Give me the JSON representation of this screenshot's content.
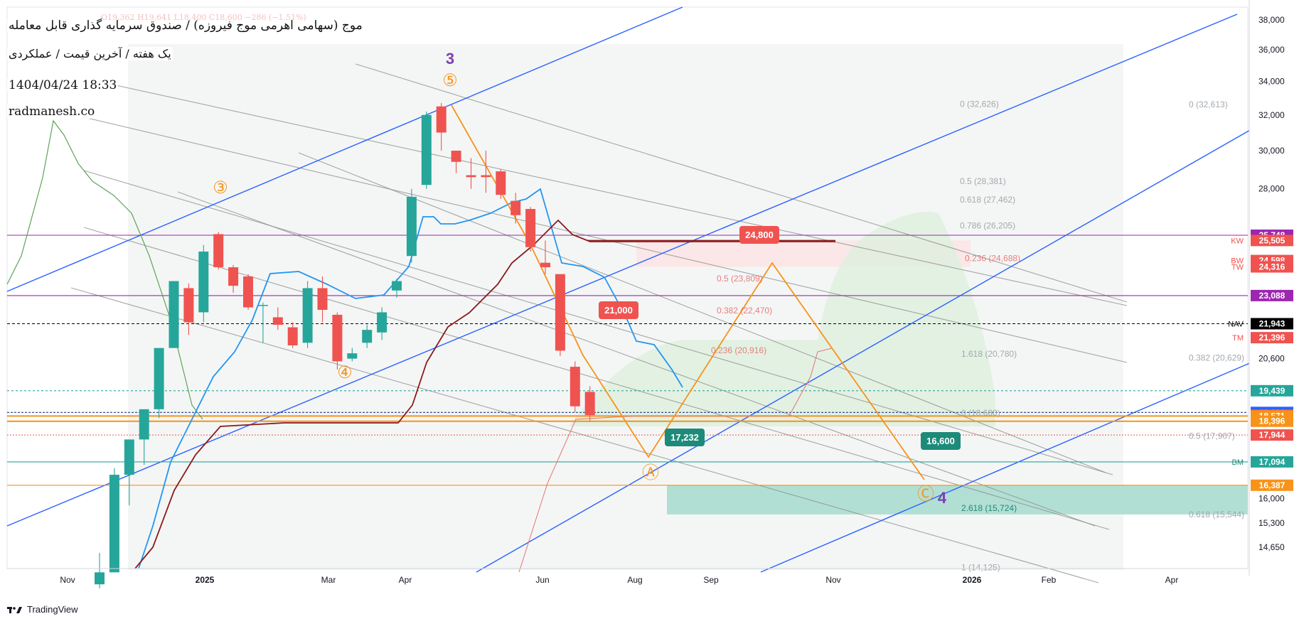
{
  "header": {
    "title": "موج (سهامی اهرمی موج فیروزه) / صندوق سرمایه گذاری قابل معامله",
    "subtitle": "یک هفته / آخرین قیمت / عملکردی",
    "datetime": "1404/04/24 18:33",
    "site": "radmanesh.co",
    "ohlc_faint": "O19,362 H19,641 L18,400 C18,600 −286 (−1.51%)"
  },
  "footer": {
    "brand": "TradingView"
  },
  "colors": {
    "up": "#26a69a",
    "down": "#ef5350",
    "blue_line": "#2962ff",
    "green_line": "#5fa35a",
    "darkred_line": "#8b1a1a",
    "orange": "#f7931a",
    "purple": "#9c27b0",
    "gray_channel": "#8a8a8a"
  },
  "chart_data": {
    "type": "candlestick",
    "timeframe": "1W",
    "y_axis": {
      "scale": "log",
      "range": [
        13600,
        40000
      ],
      "ticks": [
        "38,000",
        "36,000",
        "34,000",
        "32,000",
        "30,000",
        "28,000",
        "20,600",
        "16,000",
        "15,300",
        "14,650"
      ]
    },
    "x_axis": {
      "labels": [
        "Nov",
        "2025",
        "Mar",
        "Apr",
        "Jun",
        "Aug",
        "Sep",
        "Nov",
        "2026",
        "Feb",
        "Apr"
      ]
    },
    "candles": [
      {
        "o": 13700,
        "h": 14500,
        "l": 13600,
        "c": 14000
      },
      {
        "o": 14000,
        "h": 16900,
        "l": 14000,
        "c": 16700
      },
      {
        "o": 16700,
        "h": 17800,
        "l": 15800,
        "c": 17800
      },
      {
        "o": 17800,
        "h": 18800,
        "l": 17000,
        "c": 18800
      },
      {
        "o": 18800,
        "h": 21000,
        "l": 18500,
        "c": 21000
      },
      {
        "o": 21000,
        "h": 23700,
        "l": 21000,
        "c": 23700
      },
      {
        "o": 23400,
        "h": 23600,
        "l": 21500,
        "c": 22000
      },
      {
        "o": 22400,
        "h": 25300,
        "l": 22000,
        "c": 25000
      },
      {
        "o": 25800,
        "h": 25900,
        "l": 24200,
        "c": 24300
      },
      {
        "o": 24300,
        "h": 24400,
        "l": 23200,
        "c": 23500
      },
      {
        "o": 23900,
        "h": 24000,
        "l": 22500,
        "c": 22600
      },
      {
        "o": 22700,
        "h": 22800,
        "l": 21200,
        "c": 22700
      },
      {
        "o": 22200,
        "h": 22600,
        "l": 21700,
        "c": 21900
      },
      {
        "o": 21800,
        "h": 22000,
        "l": 21000,
        "c": 21100
      },
      {
        "o": 21200,
        "h": 23700,
        "l": 21000,
        "c": 23400
      },
      {
        "o": 23400,
        "h": 23900,
        "l": 22000,
        "c": 22500
      },
      {
        "o": 22300,
        "h": 22400,
        "l": 20200,
        "c": 20500
      },
      {
        "o": 20600,
        "h": 21000,
        "l": 20500,
        "c": 20800
      },
      {
        "o": 21200,
        "h": 21900,
        "l": 21000,
        "c": 21700
      },
      {
        "o": 21600,
        "h": 22600,
        "l": 21300,
        "c": 22400
      },
      {
        "o": 23300,
        "h": 23800,
        "l": 23000,
        "c": 23700
      },
      {
        "o": 24800,
        "h": 28000,
        "l": 24500,
        "c": 27600
      },
      {
        "o": 28200,
        "h": 32200,
        "l": 28000,
        "c": 32000
      },
      {
        "o": 32500,
        "h": 32700,
        "l": 30000,
        "c": 31000
      },
      {
        "o": 30000,
        "h": 30000,
        "l": 28800,
        "c": 29400
      },
      {
        "o": 28700,
        "h": 29600,
        "l": 28000,
        "c": 28600
      },
      {
        "o": 28700,
        "h": 30000,
        "l": 27800,
        "c": 28600
      },
      {
        "o": 28900,
        "h": 29000,
        "l": 27500,
        "c": 27700
      },
      {
        "o": 27400,
        "h": 27800,
        "l": 26300,
        "c": 26700
      },
      {
        "o": 27000,
        "h": 27100,
        "l": 25000,
        "c": 25200
      },
      {
        "o": 24500,
        "h": 25500,
        "l": 24000,
        "c": 24300
      },
      {
        "o": 24000,
        "h": 24000,
        "l": 20700,
        "c": 20900
      },
      {
        "o": 20300,
        "h": 20500,
        "l": 18700,
        "c": 18900
      },
      {
        "o": 19400,
        "h": 19600,
        "l": 18400,
        "c": 18600
      }
    ],
    "price_axis_labels": [
      {
        "value": 25748,
        "label": "25,748",
        "bg": "#9c27b0",
        "tag": ""
      },
      {
        "value": 25505,
        "label": "25,505",
        "bg": "#ef5350",
        "tag": "KW"
      },
      {
        "value": 24598,
        "label": "24,598",
        "bg": "#ef5350",
        "tag": "BW"
      },
      {
        "value": 24316,
        "label": "24,316",
        "bg": "#ef5350",
        "tag": "TW"
      },
      {
        "value": 23088,
        "label": "23,088",
        "bg": "#9c27b0",
        "tag": ""
      },
      {
        "value": 21943,
        "label": "21,943",
        "bg": "#000000",
        "tag": "NAV"
      },
      {
        "value": 21396,
        "label": "21,396",
        "bg": "#ef5350",
        "tag": "TM"
      },
      {
        "value": 19439,
        "label": "19,439",
        "bg": "#26a69a",
        "tag": ""
      },
      {
        "value": 18692,
        "label": "18,692",
        "bg": "#2962ff",
        "tag": ""
      },
      {
        "value": 18600,
        "label": "18,600",
        "bg": "#ef5350",
        "tag": ""
      },
      {
        "value": 18571,
        "label": "18,571",
        "bg": "#f7931a",
        "tag": ""
      },
      {
        "value": 18396,
        "label": "18,396",
        "bg": "#f7931a",
        "tag": ""
      },
      {
        "value": 17944,
        "label": "17,944",
        "bg": "#ef5350",
        "tag": ""
      },
      {
        "value": 17094,
        "label": "17,094",
        "bg": "#26a69a",
        "tag": "BM"
      },
      {
        "value": 16387,
        "label": "16,387",
        "bg": "#f7931a",
        "tag": ""
      }
    ],
    "fib_labels": [
      "0 (32,626)",
      "0 (32,613)",
      "0.5 (28,381)",
      "0.618 (27,462)",
      "0.786 (26,205)",
      "0.236 (24,688)",
      "0.5 (23,809)",
      "0.382 (22,470)",
      "0.236 (20,916)",
      "1.618 (20,780)",
      "0.382 (20,629)",
      "0 (18,680)",
      "0.5 (17,907)",
      "2.618 (15,724)",
      "0.618 (15,544)",
      "1 (14,125)"
    ],
    "callouts": [
      "24,800",
      "21,000",
      "17,232",
      "16,600"
    ],
    "wave_labels": {
      "major": [
        "3",
        "4"
      ],
      "minor": [
        "③",
        "④",
        "⑤",
        "Ⓐ",
        "Ⓒ"
      ]
    }
  }
}
